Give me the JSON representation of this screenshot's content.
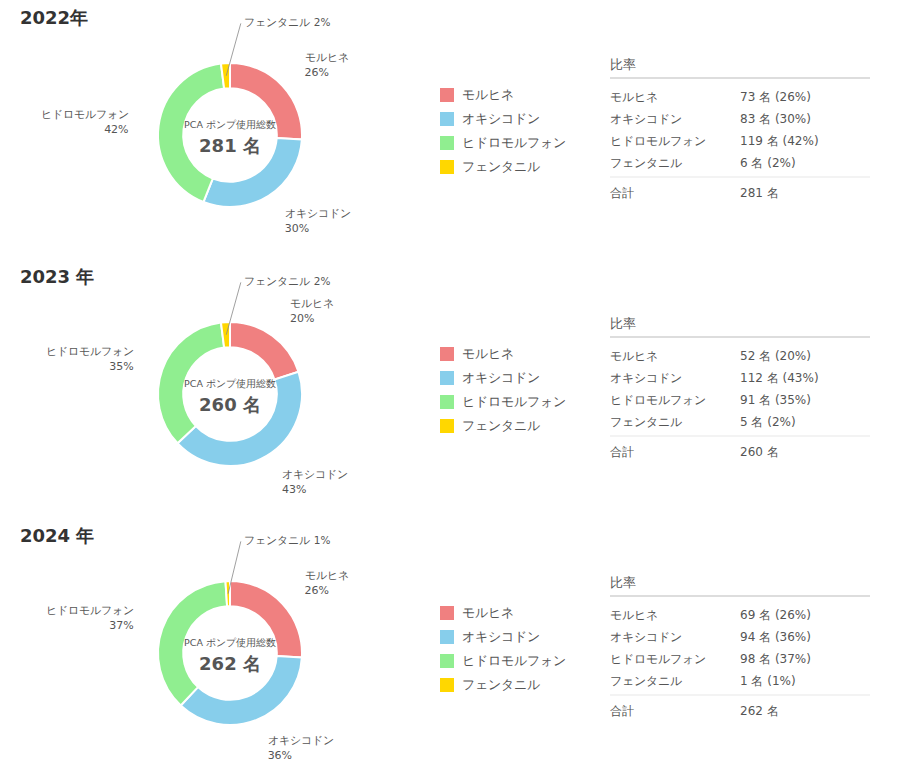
{
  "chart_data": [
    {
      "type": "pie",
      "title": "2022年",
      "categories": [
        "モルヒネ",
        "オキシコドン",
        "ヒドロモルフォン",
        "フェンタニル"
      ],
      "values": [
        26,
        30,
        42,
        2
      ],
      "value_labels": [
        "26%",
        "30%",
        "42%",
        "2%"
      ],
      "colors": [
        "#F08080",
        "#87CEEB",
        "#90EE90",
        "#FFD700"
      ],
      "data_labels": true,
      "legend": "right",
      "center_label": "PCA ポンプ使用総数",
      "total": {
        "value": 281,
        "label": "281 名"
      },
      "table": {
        "header": "比率",
        "total_name": "合計",
        "counts": [
          73,
          83,
          119,
          6
        ],
        "count_labels": [
          "73 名 (26%)",
          "83 名 (30%)",
          "119 名 (42%)",
          "6 名 (2%)"
        ]
      }
    },
    {
      "type": "pie",
      "title": "2023 年",
      "categories": [
        "モルヒネ",
        "オキシコドン",
        "ヒドロモルフォン",
        "フェンタニル"
      ],
      "values": [
        20,
        43,
        35,
        2
      ],
      "value_labels": [
        "20%",
        "43%",
        "35%",
        "2%"
      ],
      "colors": [
        "#F08080",
        "#87CEEB",
        "#90EE90",
        "#FFD700"
      ],
      "data_labels": true,
      "legend": "right",
      "center_label": "PCA ポンプ使用総数",
      "total": {
        "value": 260,
        "label": "260 名"
      },
      "table": {
        "header": "比率",
        "total_name": "合計",
        "counts": [
          52,
          112,
          91,
          5
        ],
        "count_labels": [
          "52 名 (20%)",
          "112 名 (43%)",
          "91 名 (35%)",
          "5 名 (2%)"
        ]
      }
    },
    {
      "type": "pie",
      "title": "2024 年",
      "categories": [
        "モルヒネ",
        "オキシコドン",
        "ヒドロモルフォン",
        "フェンタニル"
      ],
      "values": [
        26,
        36,
        37,
        1
      ],
      "value_labels": [
        "26%",
        "36%",
        "37%",
        "1%"
      ],
      "colors": [
        "#F08080",
        "#87CEEB",
        "#90EE90",
        "#FFD700"
      ],
      "data_labels": true,
      "legend": "right",
      "center_label": "PCA ポンプ使用総数",
      "total": {
        "value": 262,
        "label": "262 名"
      },
      "table": {
        "header": "比率",
        "total_name": "合計",
        "counts": [
          69,
          94,
          98,
          1
        ],
        "count_labels": [
          "69 名 (26%)",
          "94 名 (36%)",
          "98 名 (37%)",
          "1 名 (1%)"
        ]
      }
    }
  ]
}
